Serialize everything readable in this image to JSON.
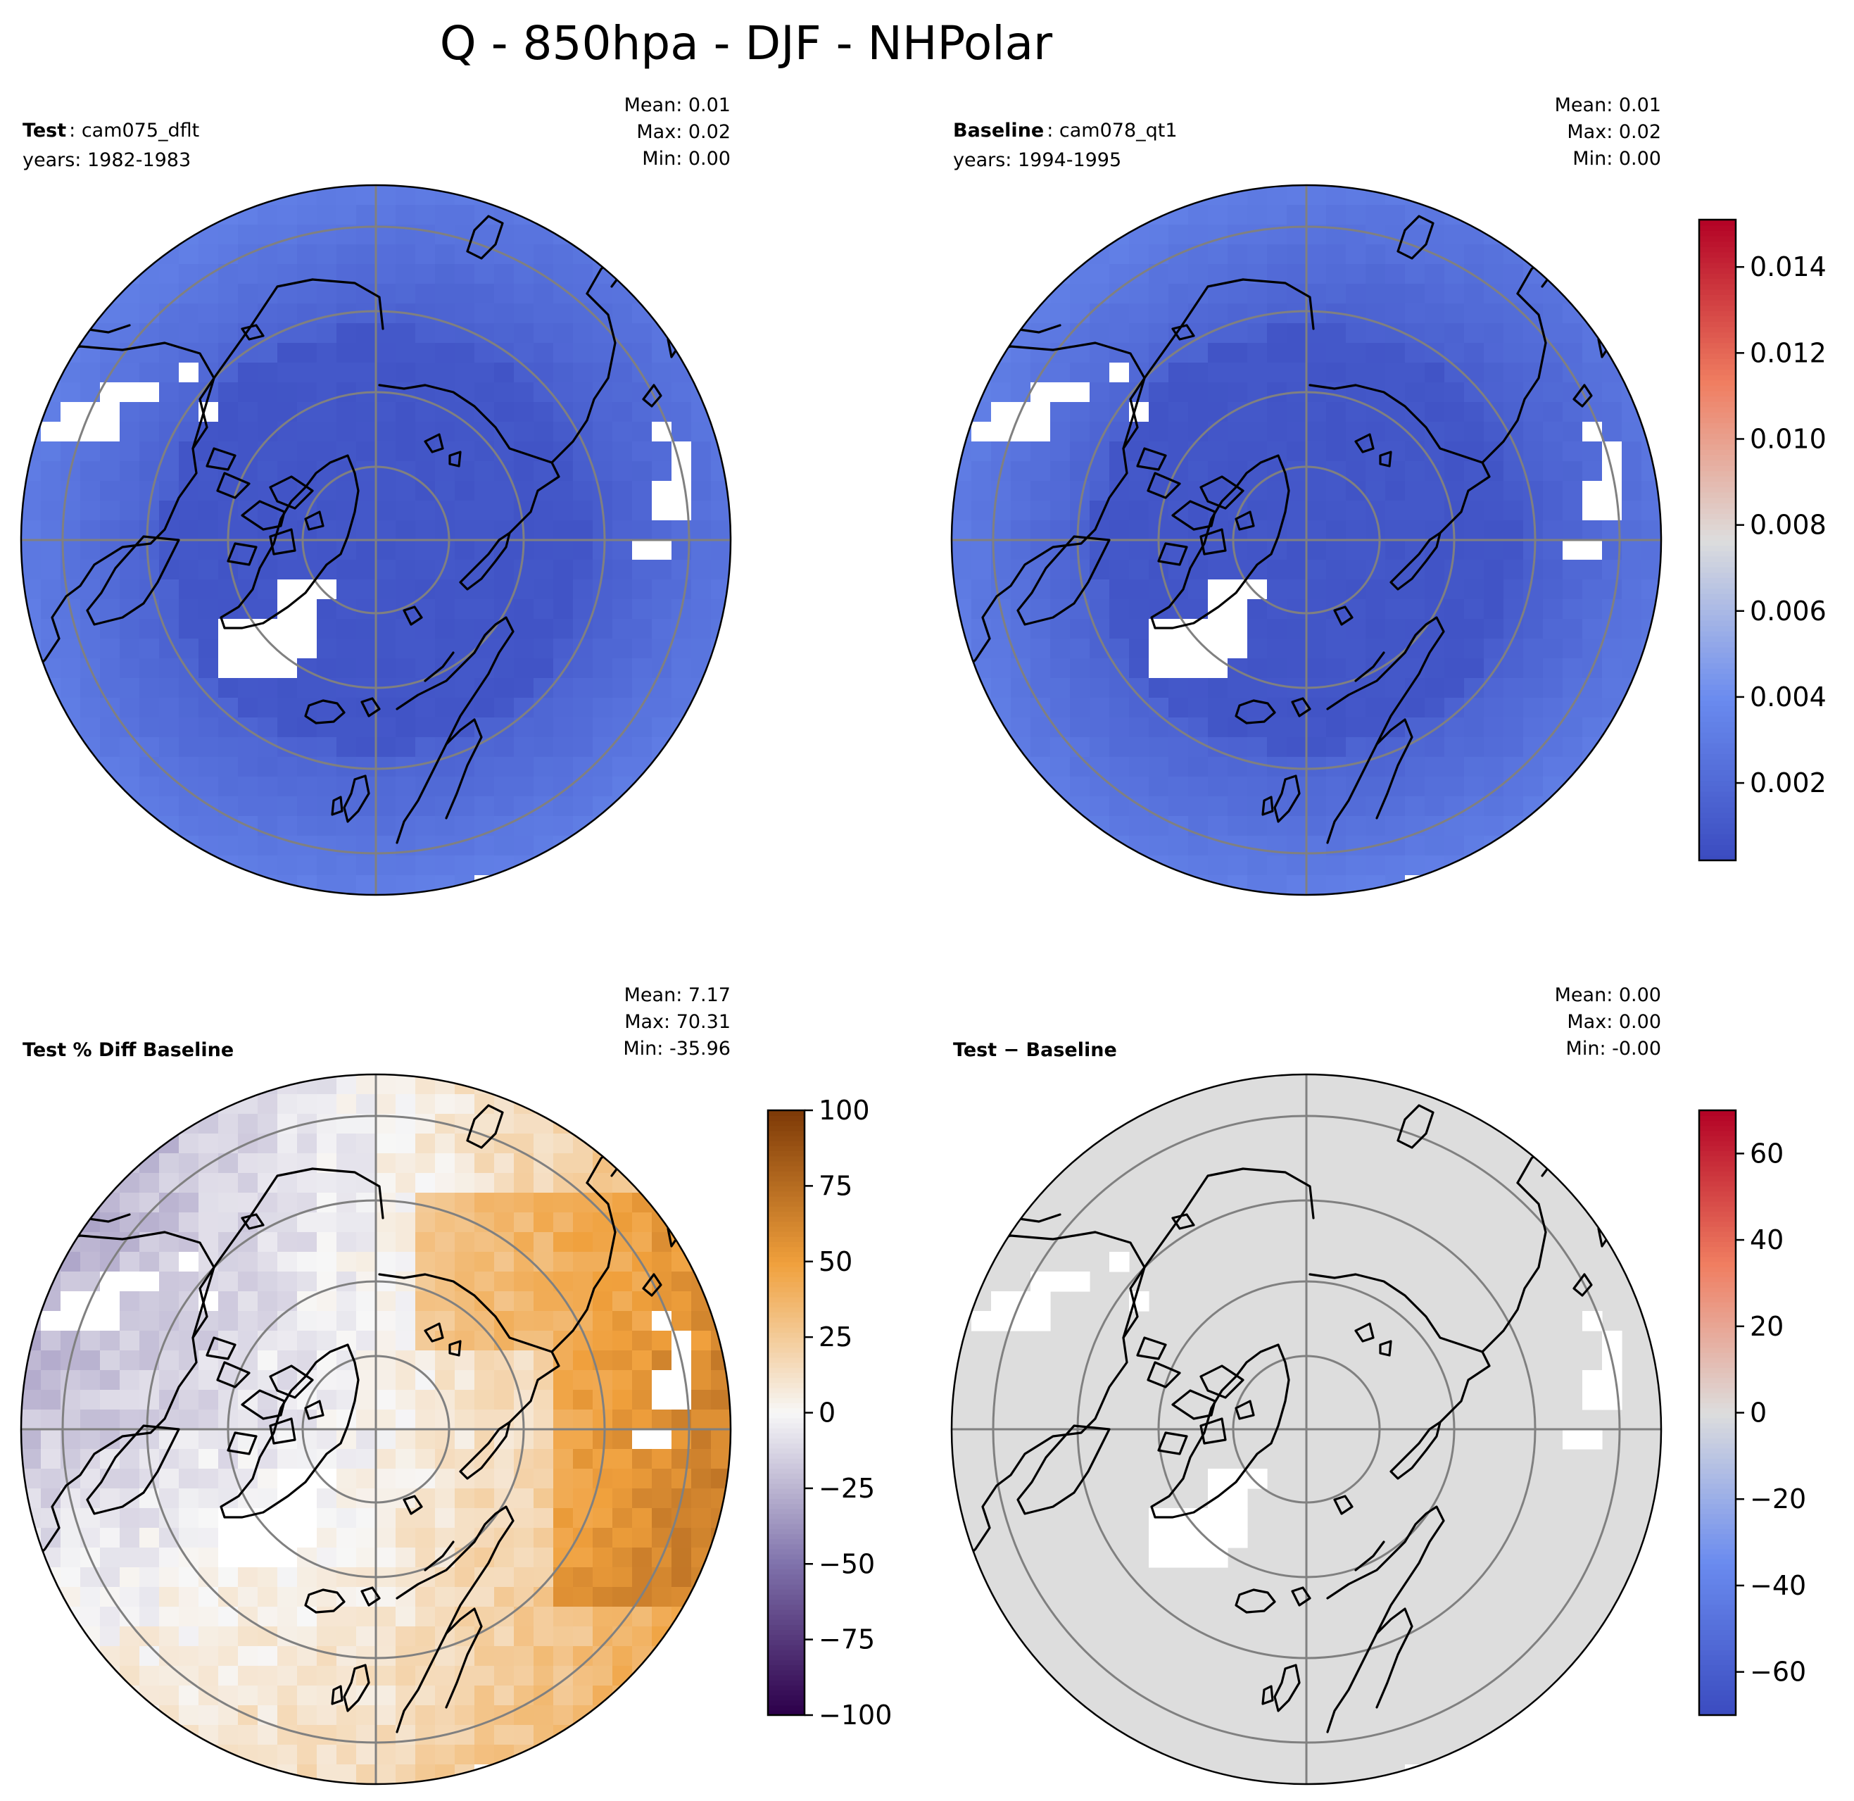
{
  "figure_title": "Q - 850hpa - DJF - NHPolar",
  "panels": [
    {
      "id": "test",
      "case_label": "Test",
      "case_name": "cam075_dflt",
      "years": "years: 1982-1983",
      "stats": {
        "mean": "Mean:  0.01",
        "max": "Max:  0.02",
        "min": "Min:  0.00"
      },
      "field": "cool"
    },
    {
      "id": "baseline",
      "case_label": "Baseline",
      "case_name": "cam078_qt1",
      "years": "years: 1994-1995",
      "stats": {
        "mean": "Mean:  0.01",
        "max": "Max:  0.02",
        "min": "Min:  0.00"
      },
      "field": "cool"
    },
    {
      "id": "pct-diff",
      "case_label": "Test % Diff Baseline",
      "stats": {
        "mean": "Mean:  7.17",
        "max": "Max: 70.31",
        "min": "Min: -35.96"
      },
      "field": "pctdiff"
    },
    {
      "id": "diff",
      "case_label": "Test − Baseline",
      "stats": {
        "mean": "Mean:  0.00",
        "max": "Max:  0.00",
        "min": "Min: -0.00"
      },
      "field": "diff"
    }
  ],
  "colorbars": [
    {
      "id": "cb-shared",
      "colormap": "coolwarm",
      "range": [
        0.0002,
        0.0151
      ],
      "ticks": [
        0.002,
        0.004,
        0.006,
        0.008,
        0.01,
        0.012,
        0.014
      ],
      "tick_labels": [
        "0.002",
        "0.004",
        "0.006",
        "0.008",
        "0.010",
        "0.012",
        "0.014"
      ]
    },
    {
      "id": "cb-pct",
      "colormap": "PuOr_r",
      "range": [
        -100,
        100
      ],
      "ticks": [
        -100,
        -75,
        -50,
        -25,
        0,
        25,
        50,
        75,
        100
      ],
      "tick_labels": [
        "−100",
        "−75",
        "−50",
        "−25",
        "0",
        "25",
        "50",
        "75",
        "100"
      ]
    },
    {
      "id": "cb-diff",
      "colormap": "coolwarm",
      "range": [
        -70,
        70
      ],
      "ticks": [
        -60,
        -40,
        -20,
        0,
        20,
        40,
        60
      ],
      "tick_labels": [
        "−60",
        "−40",
        "−20",
        "0",
        "20",
        "40",
        "60"
      ]
    }
  ],
  "colors": {
    "coolwarm_low": "#3b4cc0",
    "coolwarm_mid": "#dddddd",
    "coolwarm_high": "#b40426",
    "puor_low": "#2d004b",
    "puor_mid": "#f7f7f7",
    "puor_high": "#7f3b08",
    "gridline": "#808080",
    "coastline": "#000000"
  }
}
